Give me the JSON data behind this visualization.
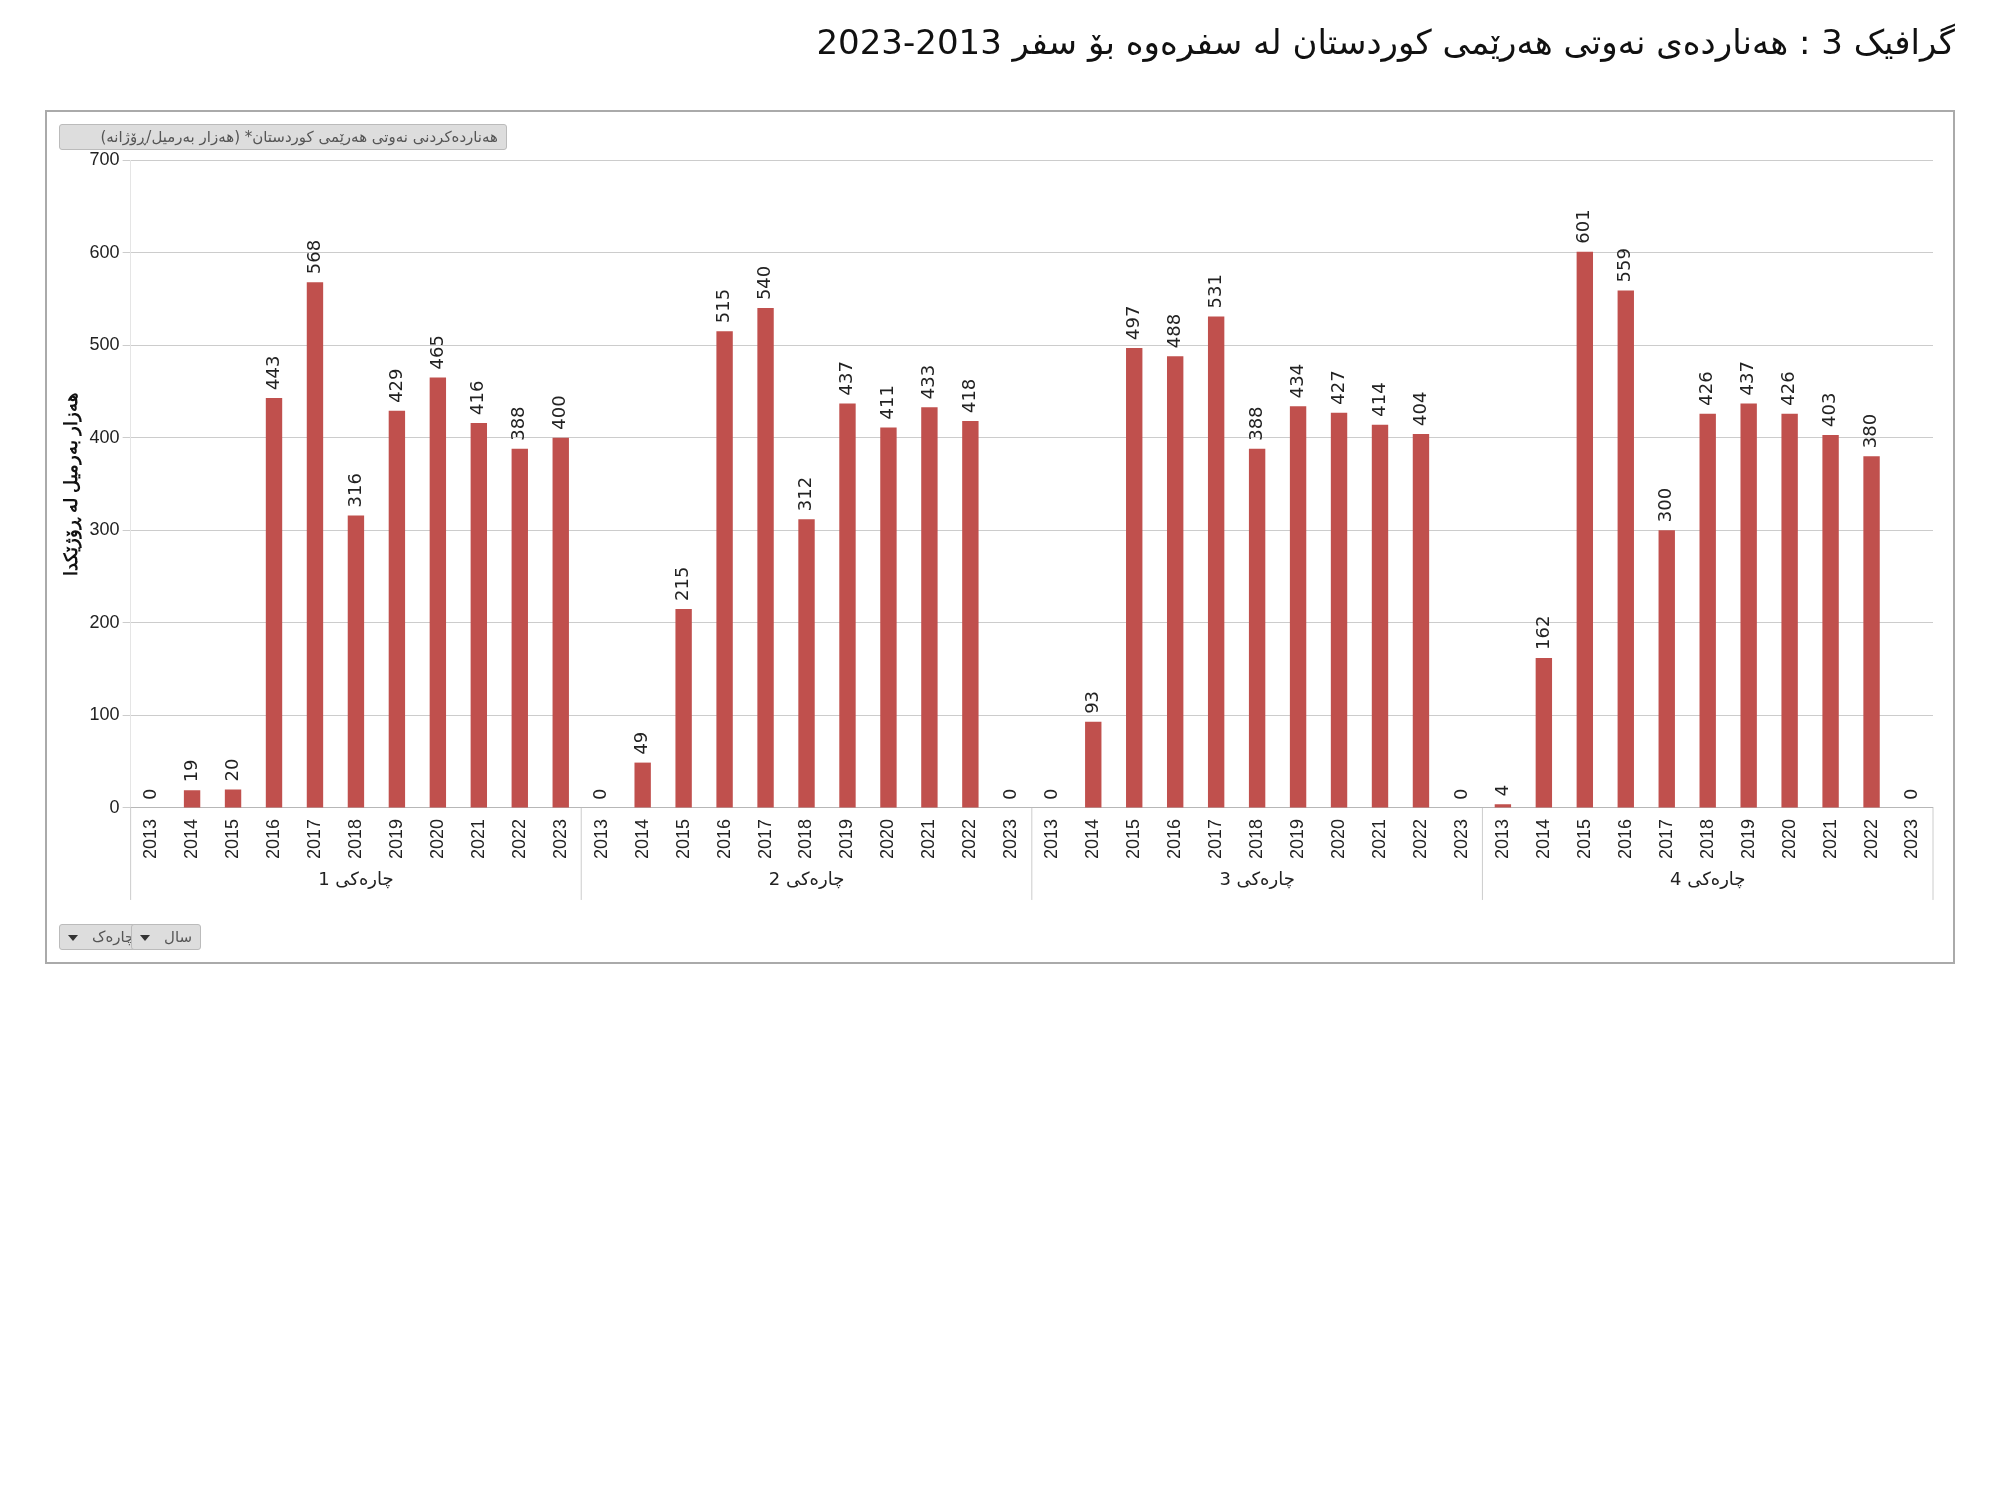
{
  "chart_data": {
    "type": "bar",
    "title": "گرافیک 3 :  هەناردەی نەوتی هەرێمی کوردستان لە سفرەوە بۆ سفر 2013-2023",
    "ylabel": "هەزار بەرمیل لە ڕۆژێکدا",
    "annotations": [
      "هەناردەکردنی نەوتی هەرێمی کوردستان* (هەزار بەرمیل/ڕۆژانە)",
      "چارەکی 1",
      "چارەکی 2",
      "چارەکی 3",
      "چارەکی 4",
      "سال",
      "چارەک"
    ],
    "categories": [
      "2013",
      "2014",
      "2015",
      "2016",
      "2017",
      "2018",
      "2019",
      "2020",
      "2021",
      "2022",
      "2023",
      "2013",
      "2014",
      "2015",
      "2016",
      "2017",
      "2018",
      "2019",
      "2020",
      "2021",
      "2022",
      "2023",
      "2013",
      "2014",
      "2015",
      "2016",
      "2017",
      "2018",
      "2019",
      "2020",
      "2021",
      "2022",
      "2023",
      "2013",
      "2014",
      "2015",
      "2016",
      "2017",
      "2018",
      "2019",
      "2020",
      "2021",
      "2022",
      "2023"
    ],
    "values": [
      0,
      19,
      20,
      443,
      568,
      316,
      429,
      465,
      416,
      388,
      400,
      0,
      49,
      215,
      515,
      540,
      312,
      437,
      411,
      433,
      418,
      0,
      0,
      93,
      497,
      488,
      531,
      388,
      434,
      427,
      414,
      404,
      0,
      4,
      162,
      601,
      559,
      300,
      426,
      437,
      426,
      403,
      380,
      0
    ],
    "color": "#c0504d",
    "ylim": [
      0,
      700
    ],
    "yticks": [
      0,
      100,
      200,
      300,
      400,
      500,
      600,
      700
    ],
    "grid": "y",
    "data_labels": true
  }
}
